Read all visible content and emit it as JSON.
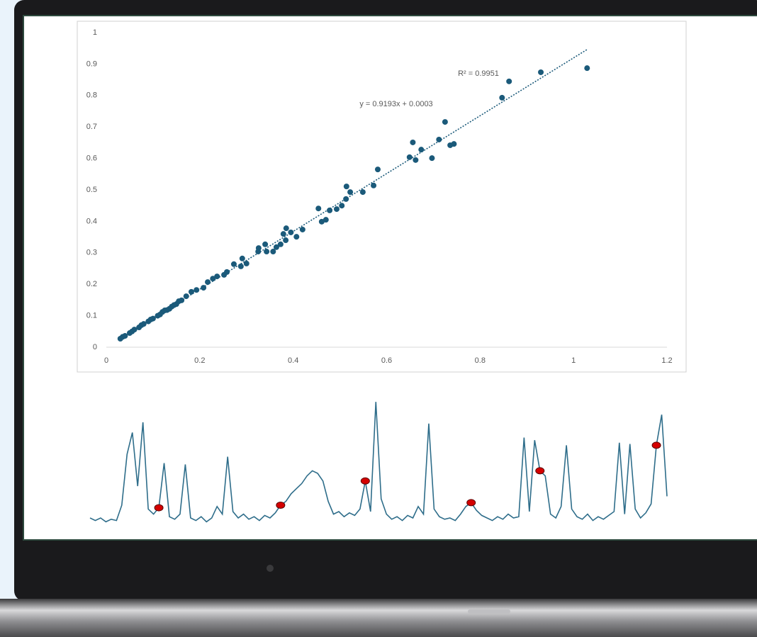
{
  "chart_data": [
    {
      "type": "scatter",
      "color": "#1b5a7a",
      "x": [
        1.029,
        0.93,
        0.862,
        0.847,
        0.725,
        0.712,
        0.744,
        0.736,
        0.656,
        0.674,
        0.649,
        0.662,
        0.697,
        0.581,
        0.572,
        0.549,
        0.514,
        0.522,
        0.513,
        0.504,
        0.493,
        0.478,
        0.454,
        0.47,
        0.461,
        0.42,
        0.407,
        0.395,
        0.385,
        0.379,
        0.384,
        0.373,
        0.364,
        0.357,
        0.34,
        0.326,
        0.343,
        0.325,
        0.3,
        0.291,
        0.288,
        0.273,
        0.258,
        0.252,
        0.237,
        0.228,
        0.217,
        0.208,
        0.193,
        0.182,
        0.171,
        0.161,
        0.03,
        0.04,
        0.05,
        0.06,
        0.07,
        0.08,
        0.09,
        0.1,
        0.11,
        0.12,
        0.13,
        0.14,
        0.15,
        0.155,
        0.035,
        0.055,
        0.075,
        0.095,
        0.115,
        0.125,
        0.135,
        0.145
      ],
      "values": [
        0.887,
        0.874,
        0.845,
        0.793,
        0.716,
        0.66,
        0.646,
        0.642,
        0.651,
        0.628,
        0.604,
        0.595,
        0.601,
        0.565,
        0.514,
        0.493,
        0.511,
        0.493,
        0.471,
        0.45,
        0.439,
        0.435,
        0.441,
        0.405,
        0.399,
        0.374,
        0.351,
        0.365,
        0.378,
        0.36,
        0.34,
        0.327,
        0.318,
        0.304,
        0.327,
        0.315,
        0.304,
        0.304,
        0.266,
        0.282,
        0.257,
        0.264,
        0.239,
        0.23,
        0.225,
        0.218,
        0.207,
        0.189,
        0.182,
        0.176,
        0.162,
        0.149,
        0.027,
        0.036,
        0.045,
        0.056,
        0.063,
        0.074,
        0.082,
        0.091,
        0.1,
        0.112,
        0.118,
        0.129,
        0.137,
        0.146,
        0.033,
        0.05,
        0.07,
        0.088,
        0.104,
        0.117,
        0.122,
        0.134
      ],
      "trendline": {
        "slope": 0.9193,
        "intercept": 0.0003,
        "equation_label": "y = 0.9193x + 0.0003",
        "r_squared_label": "R² = 0.9951",
        "r_squared": 0.9951
      },
      "xlim": [
        0,
        1.2
      ],
      "xticks": [
        0,
        0.2,
        0.4,
        0.6,
        0.8,
        1,
        1.2
      ],
      "ylim": [
        0,
        1
      ],
      "yticks": [
        0,
        0.1,
        0.2,
        0.3,
        0.4,
        0.5,
        0.6,
        0.7,
        0.8,
        0.9,
        1
      ]
    },
    {
      "type": "line",
      "color": "#2e6d8a",
      "marker_color": "#d40000",
      "ylim": [
        0,
        100
      ],
      "values": [
        5,
        3,
        5,
        2,
        4,
        3,
        15,
        55,
        72,
        30,
        80,
        12,
        8,
        13,
        48,
        6,
        4,
        8,
        47,
        5,
        3,
        6,
        2,
        5,
        14,
        8,
        53,
        10,
        5,
        8,
        4,
        6,
        3,
        7,
        5,
        9,
        15,
        18,
        24,
        28,
        32,
        38,
        42,
        40,
        34,
        18,
        8,
        10,
        6,
        9,
        7,
        12,
        34,
        10,
        96,
        20,
        8,
        4,
        6,
        3,
        7,
        5,
        14,
        8,
        79,
        12,
        6,
        4,
        5,
        3,
        8,
        14,
        17,
        11,
        7,
        5,
        3,
        6,
        4,
        8,
        5,
        6,
        68,
        10,
        66,
        42,
        38,
        8,
        5,
        14,
        62,
        12,
        6,
        4,
        8,
        3,
        6,
        4,
        7,
        10,
        64,
        8,
        63,
        12,
        5,
        9,
        16,
        62,
        86,
        22
      ],
      "marker_indices": [
        13,
        36,
        52,
        72,
        85,
        107
      ]
    }
  ]
}
